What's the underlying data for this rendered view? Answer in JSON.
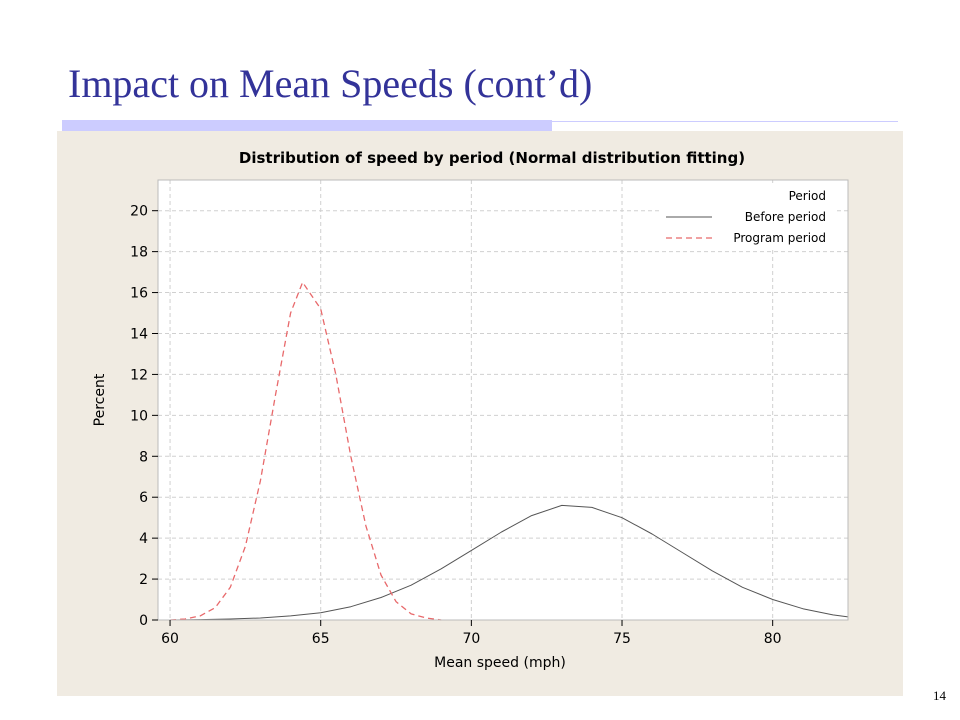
{
  "slide": {
    "title": "Impact on Mean Speeds (cont’d)",
    "page_number": "14"
  },
  "colors": {
    "title": "#333399",
    "accent_bar": "#ccccff",
    "panel_bg": "#f0ebe2",
    "before_series": "#555555",
    "program_series": "#e8696b"
  },
  "chart_data": {
    "type": "line",
    "title": "Distribution of speed by period (Normal distribution fitting)",
    "xlabel": "Mean speed (mph)",
    "ylabel": "Percent",
    "xlim": [
      59.6,
      82.5
    ],
    "ylim": [
      0,
      21.5
    ],
    "x_ticks": [
      60,
      65,
      70,
      75,
      80
    ],
    "y_ticks": [
      0,
      2,
      4,
      6,
      8,
      10,
      12,
      14,
      16,
      18,
      20
    ],
    "grid": true,
    "legend": {
      "title": "Period",
      "position": "top-right"
    },
    "series": [
      {
        "name": "Before period",
        "style": "solid",
        "x": [
          60,
          61,
          62,
          63,
          64,
          65,
          66,
          67,
          68,
          69,
          70,
          71,
          72,
          73,
          74,
          75,
          76,
          77,
          78,
          79,
          80,
          81,
          82,
          82.5
        ],
        "y": [
          0.0,
          0.02,
          0.05,
          0.1,
          0.2,
          0.35,
          0.65,
          1.1,
          1.7,
          2.5,
          3.4,
          4.3,
          5.1,
          5.6,
          5.5,
          5.0,
          4.2,
          3.3,
          2.4,
          1.6,
          1.0,
          0.55,
          0.25,
          0.15
        ]
      },
      {
        "name": "Program period",
        "style": "dashed",
        "x": [
          60,
          60.5,
          61,
          61.5,
          62,
          62.5,
          63,
          63.5,
          64,
          64.4,
          65,
          65.5,
          66,
          66.5,
          67,
          67.5,
          68,
          68.5,
          69
        ],
        "y": [
          0.0,
          0.05,
          0.2,
          0.6,
          1.6,
          3.6,
          6.8,
          11.0,
          15.0,
          16.5,
          15.2,
          12.0,
          8.0,
          4.6,
          2.2,
          0.9,
          0.3,
          0.1,
          0.0
        ]
      }
    ]
  }
}
